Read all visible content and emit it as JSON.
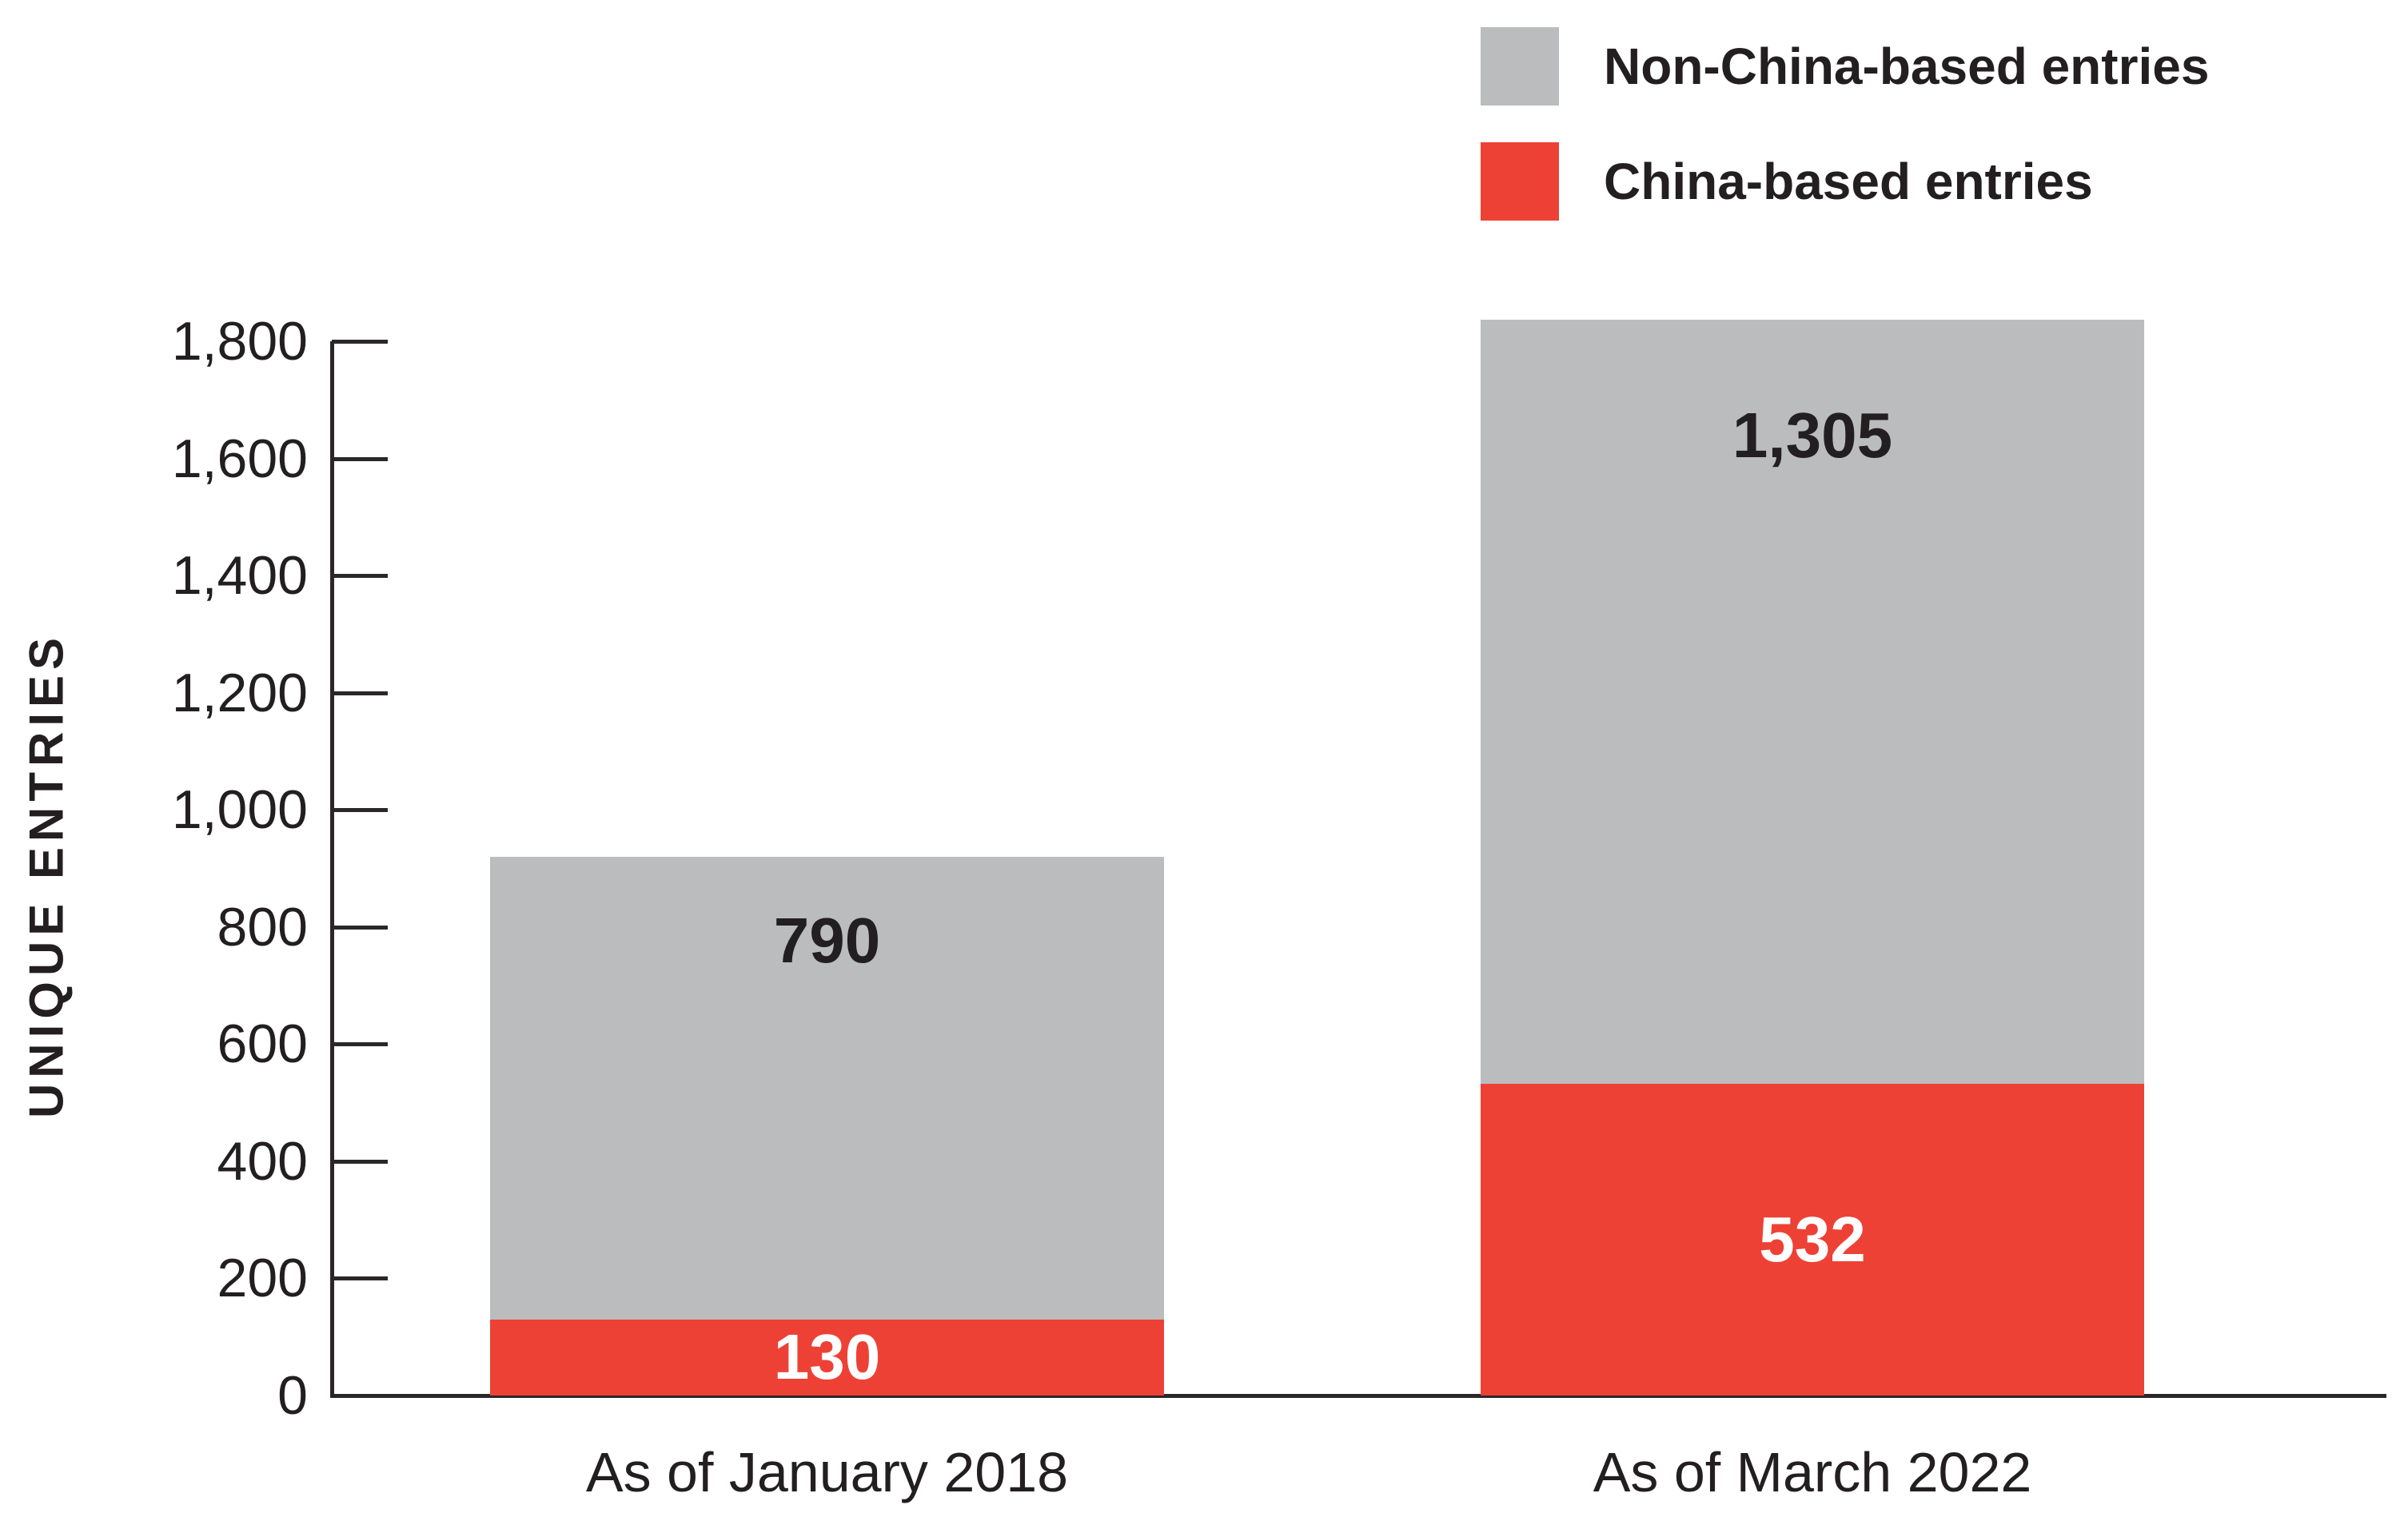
{
  "chart_data": {
    "type": "bar",
    "stacked": true,
    "categories": [
      "As of January 2018",
      "As of March 2022"
    ],
    "series": [
      {
        "name": "China-based entries",
        "color": "#EE4136",
        "values": [
          130,
          532
        ],
        "value_labels": [
          "130",
          "532"
        ],
        "label_style": "white-centered"
      },
      {
        "name": "Non-China-based entries",
        "color": "#BBBCBE",
        "values": [
          790,
          1305
        ],
        "value_labels": [
          "790",
          "1,305"
        ],
        "label_style": "dark-near-top"
      }
    ],
    "totals": [
      920,
      1837
    ],
    "title": "",
    "xlabel": "",
    "ylabel": "UNIQUE ENTRIES",
    "ylim": [
      0,
      1800
    ],
    "ytick_step": 200,
    "ytick_labels": [
      "0",
      "200",
      "400",
      "600",
      "800",
      "1,000",
      "1,200",
      "1,400",
      "1,600",
      "1,800"
    ],
    "grid": false,
    "legend_position": "top-right"
  },
  "legend": {
    "items": [
      {
        "label": "Non-China-based entries",
        "color": "#BBBCBE"
      },
      {
        "label": "China-based entries",
        "color": "#EE4136"
      }
    ]
  },
  "colors": {
    "red": "#EE4136",
    "gray": "#BBBCBE",
    "text": "#231F20",
    "axis": "#2B2728",
    "background": "#FFFFFF"
  }
}
